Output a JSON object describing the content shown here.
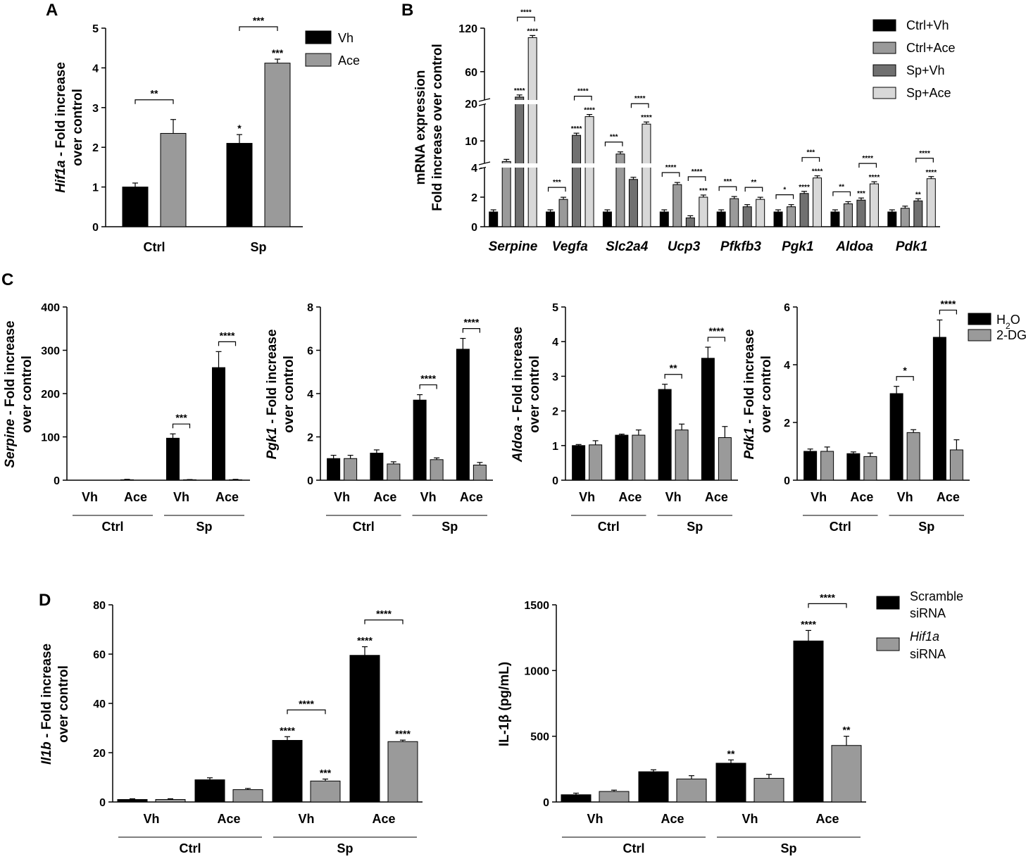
{
  "colors": {
    "black": "#000000",
    "gray": "#9a9a9a",
    "dark": "#707070",
    "light": "#d8d8d8"
  },
  "chart_data": [
    {
      "id": "A",
      "panel_label": "A",
      "type": "bar",
      "title": "",
      "ylabel_gene": "Hif1a",
      "ylabel_rest": " - Fold increase",
      "ylabel_line2": "over control",
      "ylim": [
        0,
        5
      ],
      "yticks": [
        "0",
        "1",
        "2",
        "3",
        "4",
        "5"
      ],
      "categories": [
        "Ctrl",
        "Sp"
      ],
      "series": [
        {
          "name": "Vh",
          "color": "#000000",
          "values": [
            1.0,
            2.1
          ],
          "errors": [
            0.1,
            0.22
          ],
          "stars": [
            "",
            "*"
          ]
        },
        {
          "name": "Ace",
          "color": "#9a9a9a",
          "values": [
            2.35,
            4.12
          ],
          "errors": [
            0.35,
            0.1
          ],
          "stars": [
            "",
            "***"
          ]
        }
      ],
      "comparisons": [
        {
          "group": 0,
          "label": "**"
        },
        {
          "group": 1,
          "label": "***"
        }
      ],
      "legend": [
        "Vh",
        "Ace"
      ]
    },
    {
      "id": "B",
      "panel_label": "B",
      "type": "bar",
      "ylabel_line1": "mRNA expression",
      "ylabel_line2": "Fold increase over control",
      "y_segments": [
        {
          "range": [
            0,
            4
          ],
          "ticks": [
            "0",
            "2",
            "4"
          ]
        },
        {
          "range": [
            4,
            20
          ],
          "ticks": [
            "10",
            "20"
          ]
        },
        {
          "range": [
            20,
            120
          ],
          "ticks": [
            "60",
            "120"
          ]
        }
      ],
      "categories": [
        "Serpine",
        "Vegfa",
        "Slc2a4",
        "Ucp3",
        "Pfkfb3",
        "Pgk1",
        "Aldoa",
        "Pdk1"
      ],
      "series": [
        {
          "name": "Ctrl+Vh",
          "color": "#000000",
          "values": [
            1,
            1,
            1,
            1,
            1,
            1,
            1,
            1
          ]
        },
        {
          "name": "Ctrl+Ace",
          "color": "#9a9a9a",
          "values": [
            4.5,
            1.85,
            6.5,
            2.85,
            1.9,
            1.35,
            1.55,
            1.25
          ]
        },
        {
          "name": "Sp+Vh",
          "color": "#707070",
          "values": [
            25,
            11.5,
            3.2,
            0.6,
            1.35,
            2.25,
            1.8,
            1.75
          ]
        },
        {
          "name": "Sp+Ace",
          "color": "#d8d8d8",
          "values": [
            107,
            16.5,
            14.5,
            2.0,
            1.85,
            3.3,
            2.9,
            3.25
          ]
        }
      ],
      "stars": [
        [
          "",
          "",
          "****",
          "****"
        ],
        [
          "",
          "",
          "****",
          "****"
        ],
        [
          "",
          "",
          "",
          "****"
        ],
        [
          "",
          "",
          "",
          "***"
        ],
        [
          "",
          "",
          "",
          ""
        ],
        [
          "",
          "",
          "****",
          "****"
        ],
        [
          "",
          "",
          "***",
          "****"
        ],
        [
          "",
          "",
          "**",
          "****"
        ]
      ],
      "comparisons": [
        {
          "group": 0,
          "a": 2,
          "b": 3,
          "label": "****"
        },
        {
          "group": 1,
          "a": 0,
          "b": 1,
          "label": "***"
        },
        {
          "group": 1,
          "a": 2,
          "b": 3,
          "label": "****"
        },
        {
          "group": 2,
          "a": 0,
          "b": 1,
          "label": "***"
        },
        {
          "group": 2,
          "a": 2,
          "b": 3,
          "label": "****"
        },
        {
          "group": 3,
          "a": 0,
          "b": 1,
          "label": "****"
        },
        {
          "group": 3,
          "a": 2,
          "b": 3,
          "label": "****"
        },
        {
          "group": 4,
          "a": 0,
          "b": 1,
          "label": "***"
        },
        {
          "group": 4,
          "a": 2,
          "b": 3,
          "label": "**"
        },
        {
          "group": 5,
          "a": 0,
          "b": 1,
          "label": "*"
        },
        {
          "group": 5,
          "a": 2,
          "b": 3,
          "label": "***"
        },
        {
          "group": 6,
          "a": 0,
          "b": 1,
          "label": "**"
        },
        {
          "group": 6,
          "a": 2,
          "b": 3,
          "label": "****"
        },
        {
          "group": 7,
          "a": 2,
          "b": 3,
          "label": "****"
        }
      ],
      "legend": [
        "Ctrl+Vh",
        "Ctrl+Ace",
        "Sp+Vh",
        "Sp+Ace"
      ]
    },
    {
      "id": "C1",
      "panel_label": "C",
      "type": "bar",
      "ylabel_gene": "Serpine",
      "ylabel_rest": " - Fold increase",
      "ylabel_line2": "over control",
      "ylim": [
        0,
        400
      ],
      "yticks": [
        "0",
        "100",
        "200",
        "300",
        "400"
      ],
      "categories": [
        "Vh",
        "Ace",
        "Vh",
        "Ace"
      ],
      "groups": [
        "Ctrl",
        "Sp"
      ],
      "series": [
        {
          "name": "H2O",
          "color": "#000000",
          "values": [
            0,
            1,
            97,
            260
          ],
          "errors": [
            0,
            1,
            10,
            37
          ]
        },
        {
          "name": "2-DG",
          "color": "#9a9a9a",
          "values": [
            0,
            0,
            1,
            1
          ],
          "errors": [
            0,
            0,
            0.5,
            1
          ]
        }
      ],
      "comparisons": [
        {
          "group": 2,
          "label": "***"
        },
        {
          "group": 3,
          "label": "****"
        }
      ]
    },
    {
      "id": "C2",
      "type": "bar",
      "ylabel_gene": "Pgk1",
      "ylabel_rest": " - Fold increase",
      "ylabel_line2": "over control",
      "ylim": [
        0,
        8
      ],
      "yticks": [
        "0",
        "2",
        "4",
        "6",
        "8"
      ],
      "categories": [
        "Vh",
        "Ace",
        "Vh",
        "Ace"
      ],
      "groups": [
        "Ctrl",
        "Sp"
      ],
      "series": [
        {
          "name": "H2O",
          "color": "#000000",
          "values": [
            1.0,
            1.25,
            3.7,
            6.05
          ],
          "errors": [
            0.15,
            0.15,
            0.25,
            0.5
          ]
        },
        {
          "name": "2-DG",
          "color": "#9a9a9a",
          "values": [
            1.0,
            0.75,
            0.95,
            0.7
          ],
          "errors": [
            0.15,
            0.1,
            0.08,
            0.12
          ]
        }
      ],
      "comparisons": [
        {
          "group": 2,
          "label": "****"
        },
        {
          "group": 3,
          "label": "****"
        }
      ]
    },
    {
      "id": "C3",
      "type": "bar",
      "ylabel_gene": "Aldoa",
      "ylabel_rest": " - Fold increase",
      "ylabel_line2": "over control",
      "ylim": [
        0,
        5
      ],
      "yticks": [
        "0",
        "1",
        "2",
        "3",
        "4",
        "5"
      ],
      "categories": [
        "Vh",
        "Ace",
        "Vh",
        "Ace"
      ],
      "groups": [
        "Ctrl",
        "Sp"
      ],
      "series": [
        {
          "name": "H2O",
          "color": "#000000",
          "values": [
            1.0,
            1.3,
            2.62,
            3.52
          ],
          "errors": [
            0.03,
            0.03,
            0.15,
            0.32
          ]
        },
        {
          "name": "2-DG",
          "color": "#9a9a9a",
          "values": [
            1.02,
            1.3,
            1.45,
            1.23
          ],
          "errors": [
            0.12,
            0.15,
            0.17,
            0.32
          ]
        }
      ],
      "comparisons": [
        {
          "group": 2,
          "label": "**"
        },
        {
          "group": 3,
          "label": "****"
        }
      ]
    },
    {
      "id": "C4",
      "type": "bar",
      "ylabel_gene": "Pdk1",
      "ylabel_rest": " - Fold increase",
      "ylabel_line2": "over control",
      "ylim": [
        0,
        6
      ],
      "yticks": [
        "0",
        "2",
        "4",
        "6"
      ],
      "categories": [
        "Vh",
        "Ace",
        "Vh",
        "Ace"
      ],
      "groups": [
        "Ctrl",
        "Sp"
      ],
      "series": [
        {
          "name": "H2O",
          "color": "#000000",
          "values": [
            1.0,
            0.92,
            3.0,
            4.95
          ],
          "errors": [
            0.08,
            0.06,
            0.25,
            0.6
          ]
        },
        {
          "name": "2-DG",
          "color": "#9a9a9a",
          "values": [
            1.0,
            0.82,
            1.65,
            1.05
          ],
          "errors": [
            0.15,
            0.12,
            0.1,
            0.35
          ]
        }
      ],
      "comparisons": [
        {
          "group": 2,
          "label": "*"
        },
        {
          "group": 3,
          "label": "****"
        }
      ],
      "legend": {
        "h2o": "H",
        "h2o_sub": "2",
        "h2o_tail": "O",
        "dg": "2-DG"
      }
    },
    {
      "id": "D1",
      "panel_label": "D",
      "type": "bar",
      "ylabel_gene": "Il1b",
      "ylabel_rest": " - Fold increase",
      "ylabel_line2": "over control",
      "ylim": [
        0,
        80
      ],
      "yticks": [
        "0",
        "20",
        "40",
        "60",
        "80"
      ],
      "categories": [
        "Vh",
        "Ace",
        "Vh",
        "Ace"
      ],
      "groups": [
        "Ctrl",
        "Sp"
      ],
      "series": [
        {
          "name": "Scramble siRNA",
          "color": "#000000",
          "values": [
            1,
            9,
            25,
            59.5
          ],
          "errors": [
            0.3,
            0.8,
            1.5,
            3.5
          ],
          "stars": [
            "",
            "",
            "****",
            "****"
          ]
        },
        {
          "name": "Hif1a siRNA",
          "color": "#9a9a9a",
          "values": [
            1,
            5,
            8.5,
            24.5
          ],
          "errors": [
            0.3,
            0.5,
            0.8,
            0.6
          ],
          "stars": [
            "",
            "",
            "***",
            "****"
          ]
        }
      ],
      "comparisons": [
        {
          "group": 2,
          "label": "****"
        },
        {
          "group": 3,
          "label": "****"
        }
      ]
    },
    {
      "id": "D2",
      "type": "bar",
      "ylabel": "IL-1β (pg/mL)",
      "ylim": [
        0,
        1500
      ],
      "yticks": [
        "0",
        "500",
        "1000",
        "1500"
      ],
      "categories": [
        "Vh",
        "Ace",
        "Vh",
        "Ace"
      ],
      "groups": [
        "Ctrl",
        "Sp"
      ],
      "series": [
        {
          "name": "Scramble siRNA",
          "color": "#000000",
          "values": [
            55,
            230,
            295,
            1225
          ],
          "errors": [
            12,
            15,
            25,
            80
          ],
          "stars": [
            "",
            "",
            "**",
            "****"
          ]
        },
        {
          "name": "Hif1a siRNA",
          "color": "#9a9a9a",
          "values": [
            80,
            175,
            180,
            430
          ],
          "errors": [
            10,
            25,
            30,
            70
          ],
          "stars": [
            "",
            "",
            "",
            "**"
          ]
        }
      ],
      "comparisons": [
        {
          "group": 3,
          "label": "****"
        }
      ],
      "legend": {
        "scramble_1": "Scramble",
        "scramble_2": "siRNA",
        "hif_1": "Hif1a",
        "hif_2": "siRNA"
      }
    }
  ]
}
